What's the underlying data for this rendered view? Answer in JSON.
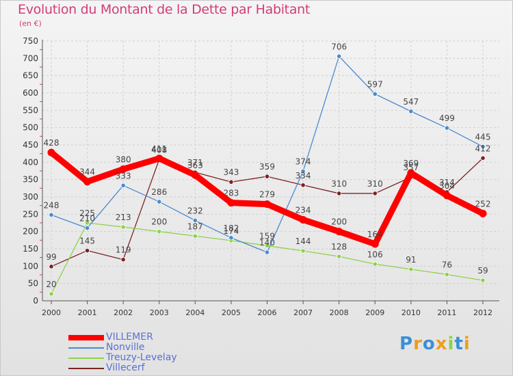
{
  "title": "Evolution du Montant de la Dette par Habitant",
  "subtitle": "(en €)",
  "brand": "Proxiti",
  "chart_data": {
    "type": "line",
    "title": "Evolution du Montant de la Dette par Habitant",
    "subtitle": "(en €)",
    "x": [
      "2000",
      "2001",
      "2002",
      "2003",
      "2004",
      "2005",
      "2006",
      "2007",
      "2008",
      "2009",
      "2010",
      "2011",
      "2012"
    ],
    "ylim": [
      0,
      750
    ],
    "yticks": [
      0,
      50,
      100,
      150,
      200,
      250,
      300,
      350,
      400,
      450,
      500,
      550,
      600,
      650,
      700,
      750
    ],
    "grid": true,
    "legend": "bottom-left",
    "series": [
      {
        "name": "VILLEMER",
        "color": "#ff0000",
        "values": [
          428,
          344,
          380,
          411,
          363,
          283,
          279,
          234,
          200,
          164,
          369,
          304,
          252
        ]
      },
      {
        "name": "Nonville",
        "color": "#4a8ad0",
        "values": [
          248,
          210,
          333,
          286,
          232,
          182,
          140,
          374,
          706,
          597,
          547,
          499,
          445
        ]
      },
      {
        "name": "Treuzy-Levelay",
        "color": "#8ed24a",
        "values": [
          20,
          225,
          213,
          200,
          187,
          174,
          159,
          144,
          128,
          106,
          91,
          76,
          59
        ]
      },
      {
        "name": "Villecerf",
        "color": "#7a2323",
        "values": [
          99,
          145,
          119,
          408,
          371,
          343,
          359,
          334,
          310,
          310,
          357,
          314,
          412
        ]
      }
    ]
  }
}
